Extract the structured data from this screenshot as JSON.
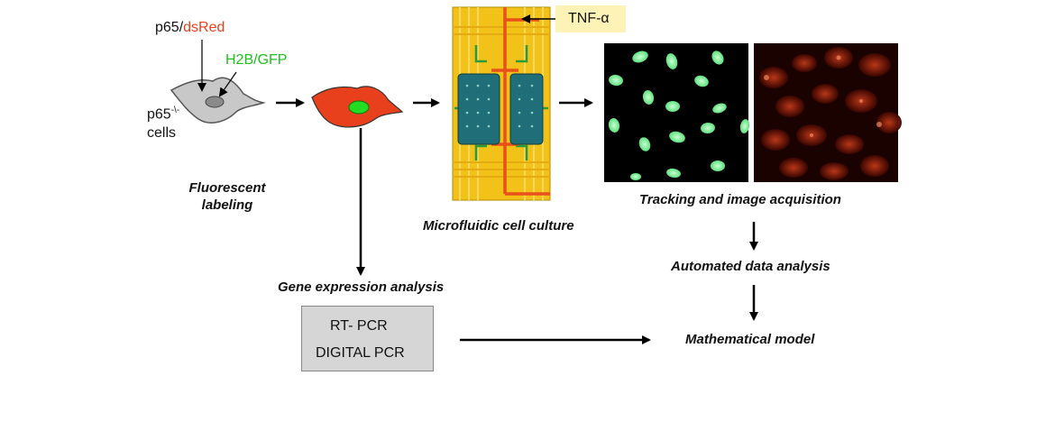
{
  "labels": {
    "p65_prefix": "p65/",
    "dsred": "dsRed",
    "h2b_gfp": "H2B/GFP",
    "p65_cells_main": "p65",
    "p65_cells_sup": "-\\-",
    "cells": "cells",
    "fluorescent_line1": "Fluorescent",
    "fluorescent_line2": "labeling",
    "tnf": "TNF-α",
    "microfluidic": "Microfluidic cell culture",
    "tracking": "Tracking and image acquisition",
    "automated": "Automated data analysis",
    "gene_expression": "Gene expression analysis",
    "rt_pcr": "RT- PCR",
    "digital_pcr": "DIGITAL PCR",
    "math_model": "Mathematical model"
  },
  "colors": {
    "dsred": "#e8401c",
    "gfp": "#1fbf1f",
    "tnf_box": "#fdf3b7",
    "pcr_box": "#d6d6d6",
    "chip_gold": "#f2c219",
    "chip_channel": "#e8501c",
    "chamber": "#1f6e78",
    "nucleus": "#7ef29a",
    "arrow": "#000000"
  },
  "icons": {
    "gray_cell": "unlabeled-cell-icon",
    "red_cell": "labeled-cell-icon",
    "chip": "microfluidic-chip-image",
    "green_image": "nuclei-fluorescence-image",
    "red_image": "p65-fluorescence-image"
  }
}
